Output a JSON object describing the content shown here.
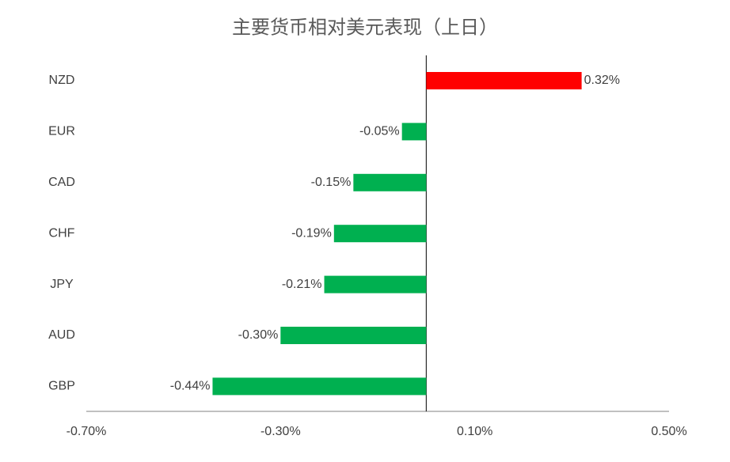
{
  "chart_data": {
    "type": "barh",
    "title": "主要货币相对美元表现（上日）",
    "categories": [
      "NZD",
      "EUR",
      "CAD",
      "CHF",
      "JPY",
      "AUD",
      "GBP"
    ],
    "values": [
      0.32,
      -0.05,
      -0.15,
      -0.19,
      -0.21,
      -0.3,
      -0.44
    ],
    "value_labels": [
      "0.32%",
      "-0.05%",
      "-0.15%",
      "-0.19%",
      "-0.21%",
      "-0.30%",
      "-0.44%"
    ],
    "positive_color": "#ff0000",
    "negative_color": "#00b050",
    "xlim": [
      -0.7,
      0.5
    ],
    "xticks": [
      {
        "value": -0.7,
        "label": "-0.70%"
      },
      {
        "value": -0.3,
        "label": "-0.30%"
      },
      {
        "value": 0.1,
        "label": "0.10%"
      },
      {
        "value": 0.5,
        "label": "0.50%"
      }
    ]
  }
}
